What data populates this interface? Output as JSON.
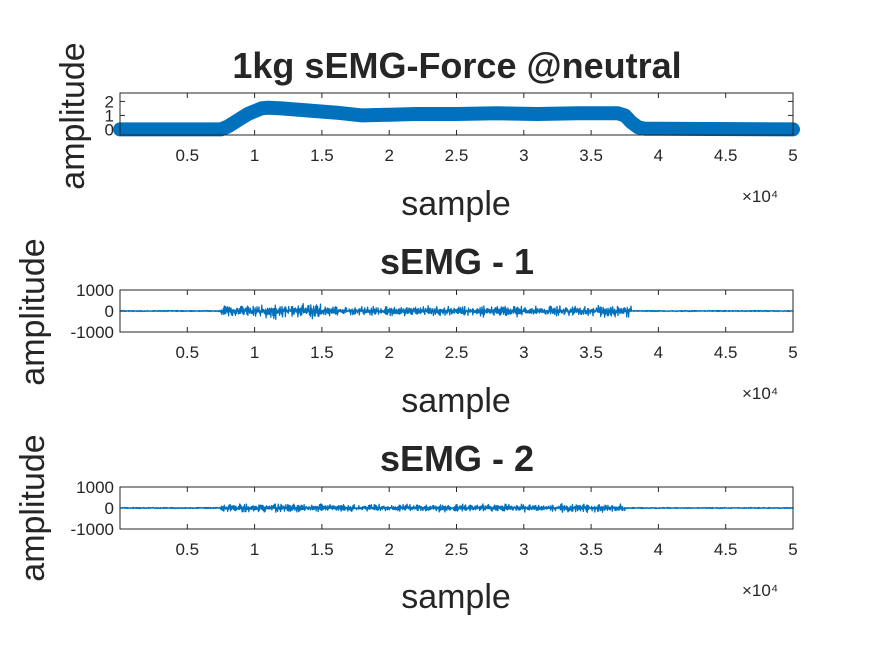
{
  "figure": {
    "background": "#ffffff",
    "text_color": "#262626",
    "series_color": "#0072BD"
  },
  "chart_data": [
    {
      "type": "line",
      "title": "1kg sEMG-Force @neutral",
      "xlabel": "sample",
      "ylabel": "amplitude",
      "xlim": [
        0,
        50000
      ],
      "ylim": [
        -0.4,
        2.6
      ],
      "x_exponent_label": "×10⁴",
      "xticks": [
        5000,
        10000,
        15000,
        20000,
        25000,
        30000,
        35000,
        40000,
        45000,
        50000
      ],
      "xtick_labels": [
        "0.5",
        "1",
        "1.5",
        "2",
        "2.5",
        "3",
        "3.5",
        "4",
        "4.5",
        "5"
      ],
      "yticks": [
        0,
        1,
        2
      ],
      "ytick_labels": [
        "0",
        "1",
        "2"
      ],
      "marker": "filled-circle",
      "series": [
        {
          "x": [
            0,
            7500,
            8000,
            8500,
            9000,
            9500,
            10000,
            10500,
            11000,
            12000,
            14000,
            16000,
            18000,
            20000,
            22000,
            25000,
            28000,
            31000,
            34000,
            37000,
            37500,
            38000,
            38500,
            39000,
            40000,
            50000
          ],
          "values": [
            0,
            0,
            0.2,
            0.5,
            0.8,
            1.1,
            1.3,
            1.5,
            1.55,
            1.5,
            1.35,
            1.2,
            1.0,
            1.05,
            1.1,
            1.1,
            1.15,
            1.1,
            1.15,
            1.15,
            1.0,
            0.5,
            0.15,
            0.05,
            0.05,
            0
          ]
        }
      ]
    },
    {
      "type": "line",
      "title": "sEMG - 1",
      "xlabel": "sample",
      "ylabel": "amplitude",
      "xlim": [
        0,
        50000
      ],
      "ylim": [
        -1000,
        1000
      ],
      "x_exponent_label": "×10⁴",
      "xticks": [
        5000,
        10000,
        15000,
        20000,
        25000,
        30000,
        35000,
        40000,
        45000,
        50000
      ],
      "xtick_labels": [
        "0.5",
        "1",
        "1.5",
        "2",
        "2.5",
        "3",
        "3.5",
        "4",
        "4.5",
        "5"
      ],
      "yticks": [
        1000,
        0,
        -1000
      ],
      "ytick_labels": [
        "1000",
        "0",
        "-1000"
      ],
      "series": [
        {
          "baseline_noise": 25,
          "bursts": [
            {
              "x": [
                7500,
                10000
              ],
              "amplitude": 300
            },
            {
              "x": [
                10000,
                12000
              ],
              "amplitude": 420
            },
            {
              "x": [
                12000,
                15000
              ],
              "amplitude": 380
            },
            {
              "x": [
                15000,
                20000
              ],
              "amplitude": 260
            },
            {
              "x": [
                20000,
                25000
              ],
              "amplitude": 280
            },
            {
              "x": [
                25000,
                30000
              ],
              "amplitude": 300
            },
            {
              "x": [
                30000,
                35000
              ],
              "amplitude": 270
            },
            {
              "x": [
                35000,
                38000
              ],
              "amplitude": 330
            }
          ]
        }
      ]
    },
    {
      "type": "line",
      "title": "sEMG - 2",
      "xlabel": "sample",
      "ylabel": "amplitude",
      "xlim": [
        0,
        50000
      ],
      "ylim": [
        -1000,
        1000
      ],
      "x_exponent_label": "×10⁴",
      "xticks": [
        5000,
        10000,
        15000,
        20000,
        25000,
        30000,
        35000,
        40000,
        45000,
        50000
      ],
      "xtick_labels": [
        "0.5",
        "1",
        "1.5",
        "2",
        "2.5",
        "3",
        "3.5",
        "4",
        "4.5",
        "5"
      ],
      "yticks": [
        1000,
        0,
        -1000
      ],
      "ytick_labels": [
        "1000",
        "0",
        "-1000"
      ],
      "series": [
        {
          "baseline_noise": 25,
          "bursts": [
            {
              "x": [
                7500,
                12000
              ],
              "amplitude": 220
            },
            {
              "x": [
                12000,
                15000
              ],
              "amplitude": 240
            },
            {
              "x": [
                15000,
                25000
              ],
              "amplitude": 200
            },
            {
              "x": [
                25000,
                32000
              ],
              "amplitude": 210
            },
            {
              "x": [
                32000,
                37500
              ],
              "amplitude": 230
            }
          ]
        }
      ]
    }
  ]
}
